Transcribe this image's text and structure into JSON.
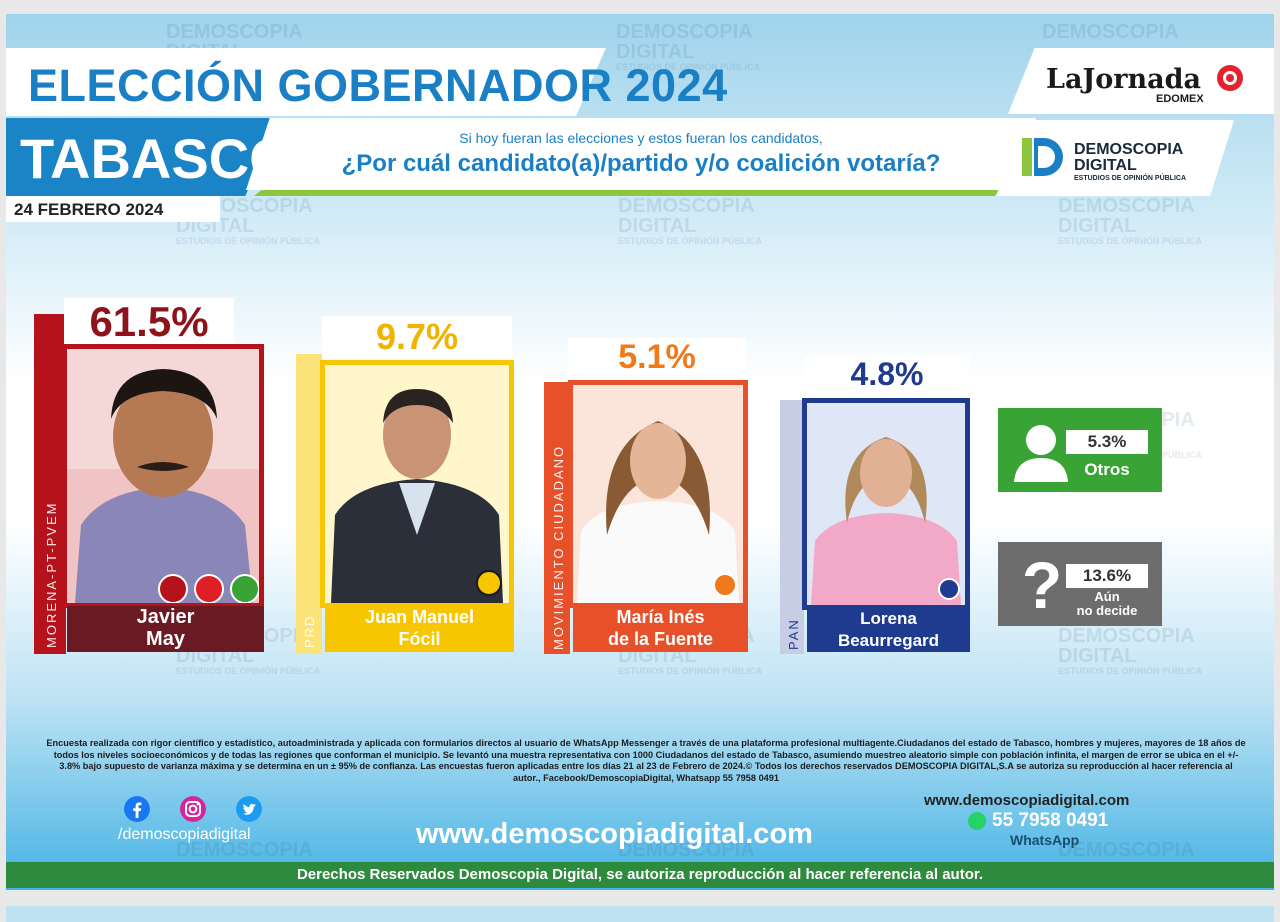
{
  "header": {
    "title": "ELECCIÓN GOBERNADOR 2024",
    "state": "TABASCO",
    "date": "24 FEBRERO 2024",
    "question_line1": "Si hoy fueran las elecciones y estos fueran los candidatos,",
    "question_line2": "¿Por cuál candidato(a)/partido y/o coalición votaría?"
  },
  "logos": {
    "jornada": "LaJornada",
    "jornada_sub": "EDOMEX",
    "demoscopia_line1": "DEMOSCOPIA",
    "demoscopia_line2": "DIGITAL",
    "demoscopia_tag": "ESTUDIOS DE OPINIÓN PÚBLICA"
  },
  "watermark": {
    "line1": "DEMOSCOPIA",
    "line2": "DIGITAL",
    "tag": "ESTUDIOS DE OPINIÓN PÚBLICA"
  },
  "chart_data": {
    "type": "bar",
    "title": "ELECCIÓN GOBERNADOR 2024",
    "subtitle": "¿Por cuál candidato(a)/partido y/o coalición votaría?",
    "unit": "%",
    "series": [
      {
        "categories": [
          "Javier May",
          "Juan Manuel Fócil",
          "María Inés de la Fuente",
          "Lorena Beaurregard",
          "Otros",
          "Aún no decide"
        ],
        "values": [
          61.5,
          9.7,
          5.1,
          4.8,
          5.3,
          13.6
        ]
      }
    ],
    "candidates": [
      {
        "name_line1": "Javier",
        "name_line2": "May",
        "party": "MORENA-PT-PVEM",
        "value": 61.5,
        "label": "61.5%",
        "color": "#b5121b",
        "text_color": "#8e1219"
      },
      {
        "name_line1": "Juan Manuel",
        "name_line2": "Fócil",
        "party": "PRD",
        "value": 9.7,
        "label": "9.7%",
        "color": "#f7c600",
        "text_color": "#f2b200"
      },
      {
        "name_line1": "María Inés",
        "name_line2": "de la Fuente",
        "party": "MOVIMIENTO CIUDADANO",
        "value": 5.1,
        "label": "5.1%",
        "color": "#e8502a",
        "text_color": "#f07a1a"
      },
      {
        "name_line1": "Lorena",
        "name_line2": "Beaurregard",
        "party": "PAN",
        "value": 4.8,
        "label": "4.8%",
        "color": "#1f3b8f",
        "text_color": "#1f3b8f"
      }
    ],
    "others": {
      "label": "Otros",
      "value": 5.3,
      "display": "5.3%",
      "color": "#3aa335"
    },
    "undecided": {
      "label_line1": "Aún",
      "label_line2": "no decide",
      "value": 13.6,
      "display": "13.6%",
      "color": "#6d6d6d"
    }
  },
  "footer": {
    "disclaimer": "Encuesta realizada con rigor científico y estadístico, autoadministrada y aplicada con formularios directos al usuario de WhatsApp Messenger a través de una plataforma profesional multiagente.Ciudadanos del estado de Tabasco, hombres y mujeres, mayores de 18 años de todos los niveles socioeconómicos y de todas las regiones que conforman el municipio. Se levantó una muestra representativa con 1000 Ciudadanos del estado de Tabasco, asumiendo muestreo aleatorio simple con población infinita, el margen de error se ubica en el +/- 3.8% bajo supuesto de varianza máxima y se determina en un ± 95% de confianza. Las encuestas fueron aplicadas entre los días 21 al 23 de Febrero de 2024.© Todos los derechos reservados DEMOSCOPIA DIGITAL,S.A se autoriza su reproducción al hacer referencia al autor., Facebook/DemoscopiaDigital, Whatsapp 55 7958 0491",
    "social_handle": "/demoscopiadigital",
    "website_main": "www.demoscopiadigital.com",
    "website_right": "www.demoscopiadigital.com",
    "phone": "55 7958 0491",
    "whatsapp_label": "WhatsApp",
    "rights": "Derechos Reservados Demoscopia Digital, se autoriza reproducción al hacer referencia al autor."
  }
}
